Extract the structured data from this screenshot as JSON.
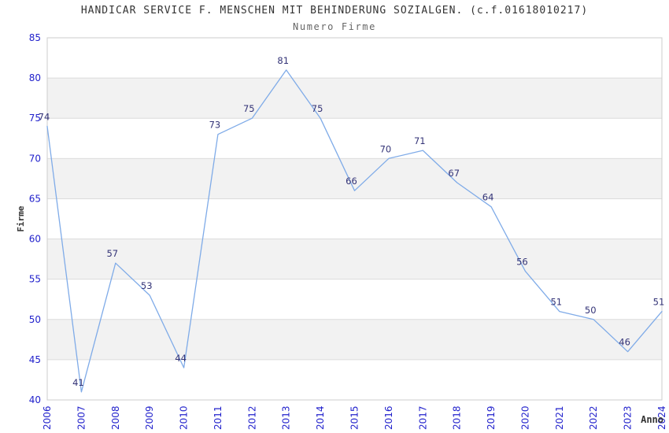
{
  "chart_data": {
    "type": "line",
    "title": "HANDICAR SERVICE F. MENSCHEN MIT BEHINDERUNG SOZIALGEN. (c.f.01618010217)",
    "subtitle": "Numero Firme",
    "xlabel": "Anno",
    "ylabel": "Firme",
    "categories": [
      "2006",
      "2007",
      "2008",
      "2009",
      "2010",
      "2011",
      "2012",
      "2013",
      "2014",
      "2015",
      "2016",
      "2017",
      "2018",
      "2019",
      "2020",
      "2021",
      "2022",
      "2023",
      "2024"
    ],
    "series": [
      {
        "name": "Numero Firme",
        "values": [
          74,
          41,
          57,
          53,
          44,
          73,
          75,
          81,
          75,
          66,
          70,
          71,
          67,
          64,
          56,
          51,
          50,
          46,
          51
        ]
      }
    ],
    "ylim": [
      40,
      85
    ],
    "ytick_step": 5,
    "yticks": [
      40,
      45,
      50,
      55,
      60,
      65,
      70,
      75,
      80,
      85
    ],
    "grid": "horizontal-lines-with-alternating-bands",
    "legend": "none",
    "data_labels_visible": true,
    "colors": {
      "line": "#7fabe8",
      "band": "#f2f2f2",
      "gridline": "#dcdcdc",
      "plot_border": "#cccccc",
      "tick_label": "#2222cc",
      "data_label": "#333377",
      "title": "#333333",
      "subtitle": "#666666",
      "axis_title": "#333333",
      "background": "#ffffff"
    }
  }
}
